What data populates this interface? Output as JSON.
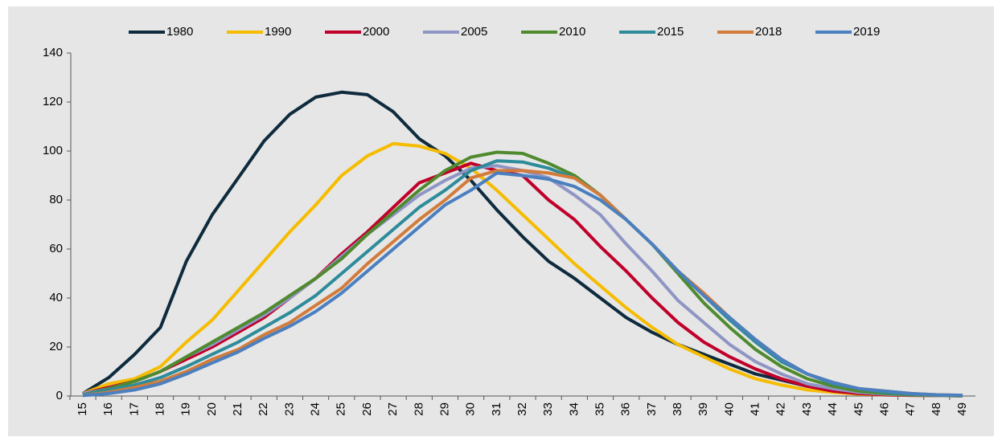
{
  "chart_data": {
    "type": "line",
    "categories": [
      15,
      16,
      17,
      18,
      19,
      20,
      21,
      22,
      23,
      24,
      25,
      26,
      27,
      28,
      29,
      30,
      31,
      32,
      33,
      34,
      35,
      36,
      37,
      38,
      39,
      40,
      41,
      42,
      43,
      44,
      45,
      46,
      47,
      48,
      49
    ],
    "series": [
      {
        "name": "1980",
        "color": "#0e2a3d",
        "values": [
          1,
          7.5,
          17,
          28,
          55,
          74,
          89,
          104,
          115,
          122,
          124,
          123,
          116,
          105,
          98,
          88,
          76,
          65,
          55,
          48,
          40,
          32,
          26,
          21,
          17,
          13,
          9,
          6.5,
          4,
          2.5,
          1.5,
          1,
          0.5,
          0.3,
          0.2
        ]
      },
      {
        "name": "1990",
        "color": "#f5bc00",
        "values": [
          1,
          5,
          7,
          12,
          22,
          31,
          43,
          55,
          67,
          78,
          90,
          98,
          103,
          102,
          99,
          93,
          84,
          74,
          64,
          54,
          45,
          36,
          28,
          21,
          16,
          11,
          7,
          4.5,
          2.5,
          1.5,
          0.8,
          0.5,
          0.3,
          0.2,
          0.1
        ]
      },
      {
        "name": "2000",
        "color": "#c0002a",
        "values": [
          1,
          3.5,
          6,
          10,
          15,
          20,
          26,
          32,
          40,
          48,
          58,
          67,
          77,
          87,
          91,
          95,
          92,
          90,
          80,
          72,
          61,
          51,
          40,
          30,
          22,
          16,
          11,
          7,
          4,
          2,
          1,
          0.5,
          0.3,
          0.2,
          0.1
        ]
      },
      {
        "name": "2005",
        "color": "#8f95c4",
        "values": [
          1,
          3,
          6,
          10,
          16,
          21,
          27,
          33,
          40,
          48,
          57,
          66,
          74,
          82,
          88,
          93,
          94,
          92,
          89,
          82,
          74,
          62,
          51,
          39,
          30,
          21,
          14,
          9,
          5,
          3,
          1.5,
          0.8,
          0.4,
          0.2,
          0.1
        ]
      },
      {
        "name": "2010",
        "color": "#4f8a2e",
        "values": [
          0.5,
          3,
          6,
          10,
          16,
          22,
          28,
          34,
          41,
          48,
          56,
          66,
          75,
          84,
          92,
          97.5,
          99.5,
          99,
          95,
          90,
          82,
          72,
          62,
          50,
          38,
          28,
          19,
          12,
          7,
          4,
          2,
          1,
          0.5,
          0.3,
          0.1
        ]
      },
      {
        "name": "2015",
        "color": "#2e8b9a",
        "values": [
          0.5,
          2.5,
          4.5,
          7.5,
          12,
          17,
          22,
          28,
          34,
          41,
          50,
          59,
          68,
          77,
          84,
          92,
          96,
          95.5,
          93,
          89,
          82,
          72,
          62,
          51,
          41,
          31,
          22,
          14,
          9,
          5,
          3,
          1.5,
          0.8,
          0.4,
          0.2
        ]
      },
      {
        "name": "2018",
        "color": "#d27b3b",
        "values": [
          0.3,
          1.5,
          3.5,
          6,
          10,
          15,
          19,
          25,
          30,
          37,
          44,
          54,
          63,
          72,
          80,
          89,
          92,
          92,
          91,
          89,
          82,
          72,
          62,
          51,
          42,
          32,
          23,
          15,
          9,
          5.5,
          3,
          2,
          1,
          0.5,
          0.3
        ]
      },
      {
        "name": "2019",
        "color": "#4a7fc0",
        "values": [
          0.2,
          1,
          2.5,
          5,
          9,
          13.5,
          18,
          23.5,
          28.5,
          34.5,
          42,
          51,
          60,
          69,
          78,
          84,
          91,
          90,
          88.5,
          85.5,
          80,
          72,
          62,
          51,
          41,
          32,
          23,
          15,
          9,
          5.5,
          3,
          2,
          1,
          0.5,
          0.3
        ]
      }
    ],
    "ylim": [
      0,
      140
    ],
    "yticks": [
      0,
      20,
      40,
      60,
      80,
      100,
      120,
      140
    ],
    "legend": "top",
    "grid": false
  }
}
